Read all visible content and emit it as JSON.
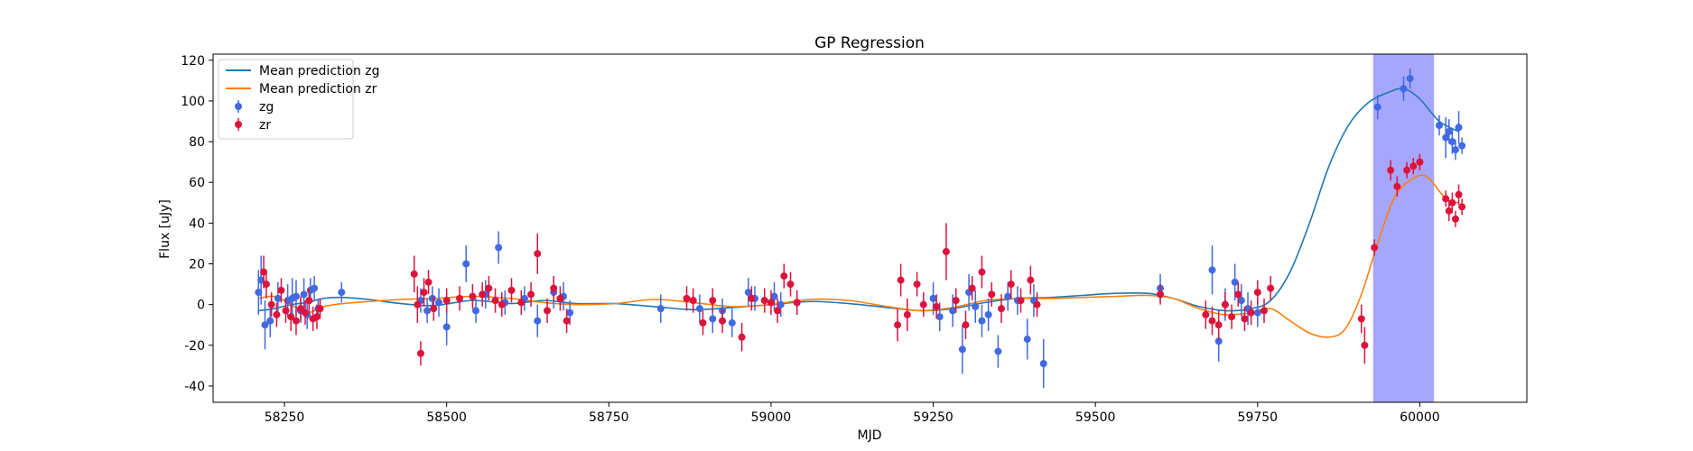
{
  "chart_data": {
    "type": "scatter",
    "title": "GP Regression",
    "xlabel": "MJD",
    "ylabel": "Flux [uJy]",
    "xlim": [
      58140,
      60165
    ],
    "ylim": [
      -48,
      123
    ],
    "xticks": [
      58250,
      58500,
      58750,
      59000,
      59250,
      59500,
      59750,
      60000
    ],
    "yticks": [
      -40,
      -20,
      0,
      20,
      40,
      60,
      80,
      100,
      120
    ],
    "grid": false,
    "legend_position": "upper-left",
    "highlight_band": {
      "x0": 59928,
      "x1": 60022,
      "color": "#a6a6ff"
    },
    "legend": [
      {
        "label": "Mean prediction zg",
        "kind": "line",
        "color": "#1f77b4"
      },
      {
        "label": "Mean prediction zr",
        "kind": "line",
        "color": "#ff7f0e"
      },
      {
        "label": "zg",
        "kind": "marker",
        "color": "#4169e1"
      },
      {
        "label": "zr",
        "kind": "marker",
        "color": "#dc143c"
      }
    ],
    "lines": [
      {
        "name": "Mean prediction zg",
        "color": "#1f77b4",
        "x": [
          58210,
          58235,
          58260,
          58285,
          58310,
          58340,
          58380,
          58430,
          58480,
          58540,
          58600,
          58650,
          58700,
          58760,
          58820,
          58880,
          58940,
          59000,
          59060,
          59120,
          59180,
          59230,
          59280,
          59330,
          59380,
          59430,
          59480,
          59530,
          59580,
          59620,
          59660,
          59700,
          59740,
          59770,
          59800,
          59830,
          59860,
          59890,
          59920,
          59950,
          59975,
          60000,
          60030,
          60060
        ],
        "y": [
          -3,
          -2,
          0,
          1,
          3,
          3.5,
          2.5,
          0.5,
          -0.5,
          2,
          0.5,
          2,
          0.5,
          0.5,
          -1,
          -2.5,
          -1.5,
          0,
          1.5,
          0.5,
          -1.5,
          -3,
          -2,
          1,
          3,
          3.5,
          4.5,
          5.5,
          5.5,
          3,
          -1,
          -3,
          -2,
          2,
          16,
          40,
          68,
          88,
          99,
          104,
          106,
          101,
          90,
          85
        ]
      },
      {
        "name": "Mean prediction zr",
        "color": "#ff7f0e",
        "x": [
          58210,
          58235,
          58260,
          58285,
          58310,
          58340,
          58380,
          58430,
          58480,
          58540,
          58600,
          58650,
          58700,
          58760,
          58820,
          58880,
          58940,
          59000,
          59060,
          59120,
          59180,
          59230,
          59280,
          59330,
          59380,
          59430,
          59480,
          59530,
          59580,
          59620,
          59660,
          59700,
          59740,
          59770,
          59800,
          59830,
          59860,
          59885,
          59910,
          59935,
          59960,
          59985,
          60010,
          60040,
          60060
        ],
        "y": [
          3,
          4,
          0,
          -4,
          -1,
          0.5,
          1.5,
          2.5,
          3,
          4,
          3,
          1,
          0,
          0.5,
          2.5,
          1,
          -1,
          0,
          2.5,
          2,
          -1,
          -3,
          -1.5,
          2,
          3,
          3,
          3.5,
          4,
          4.5,
          3,
          -2,
          -5,
          -4,
          -2,
          -8,
          -14,
          -16,
          -12,
          5,
          30,
          52,
          61,
          63,
          52,
          50
        ]
      }
    ],
    "series": [
      {
        "name": "zg",
        "color": "#4169e1",
        "x": [
          58210,
          58214,
          58220,
          58228,
          58240,
          58255,
          58262,
          58268,
          58275,
          58280,
          58285,
          58290,
          58296,
          58302,
          58338,
          58460,
          58470,
          58478,
          58488,
          58500,
          58530,
          58545,
          58560,
          58580,
          58590,
          58620,
          58640,
          58665,
          58680,
          58690,
          58830,
          58890,
          58910,
          58925,
          58940,
          58965,
          58975,
          59005,
          59015,
          59040,
          59250,
          59260,
          59280,
          59295,
          59305,
          59315,
          59325,
          59335,
          59350,
          59365,
          59380,
          59395,
          59405,
          59420,
          59600,
          59680,
          59690,
          59700,
          59715,
          59725,
          59735,
          59750,
          59935,
          59975,
          59985,
          60030,
          60040,
          60045,
          60050,
          60055,
          60060,
          60065
        ],
        "y": [
          6,
          12,
          -10,
          -8,
          3,
          2,
          3,
          4,
          -3,
          5,
          -5,
          7,
          8,
          -2,
          6,
          2,
          -3,
          3,
          1,
          -11,
          20,
          -3,
          5,
          28,
          1,
          3,
          -8,
          6,
          4,
          -4,
          -2,
          -2,
          -7,
          -3,
          -9,
          6,
          3,
          4,
          0,
          1,
          3,
          -6,
          -3,
          -22,
          6,
          -1,
          -8,
          -5,
          -23,
          4,
          2,
          -17,
          2,
          -29,
          8,
          17,
          -18,
          0,
          11,
          2,
          -2,
          -4,
          97,
          106,
          111,
          88,
          82,
          85,
          80,
          76,
          87,
          78
        ],
        "yerr": [
          11,
          12,
          12,
          8,
          8,
          8,
          10,
          8,
          6,
          8,
          7,
          6,
          6,
          5,
          5,
          6,
          6,
          6,
          7,
          9,
          9,
          6,
          7,
          8,
          6,
          6,
          8,
          8,
          7,
          6,
          7,
          7,
          7,
          6,
          7,
          7,
          6,
          7,
          6,
          6,
          8,
          7,
          8,
          12,
          9,
          8,
          8,
          8,
          8,
          7,
          7,
          10,
          8,
          12,
          7,
          12,
          10,
          8,
          9,
          8,
          8,
          7,
          6,
          6,
          5,
          5,
          10,
          6,
          6,
          5,
          8,
          4
        ]
      },
      {
        "name": "zr",
        "color": "#dc143c",
        "x": [
          58218,
          58222,
          58230,
          58238,
          58245,
          58252,
          58260,
          58268,
          58275,
          58282,
          58288,
          58294,
          58300,
          58305,
          58450,
          58455,
          58460,
          58465,
          58472,
          58480,
          58500,
          58520,
          58540,
          58555,
          58565,
          58575,
          58585,
          58600,
          58615,
          58630,
          58640,
          58655,
          58665,
          58675,
          58685,
          58870,
          58880,
          58895,
          58910,
          58925,
          58955,
          58970,
          58990,
          59000,
          59010,
          59020,
          59030,
          59040,
          59195,
          59200,
          59210,
          59225,
          59235,
          59255,
          59270,
          59285,
          59300,
          59310,
          59325,
          59340,
          59355,
          59370,
          59385,
          59400,
          59410,
          59600,
          59670,
          59680,
          59690,
          59700,
          59710,
          59720,
          59730,
          59740,
          59750,
          59760,
          59770,
          59910,
          59915,
          59930,
          59955,
          59965,
          59980,
          59990,
          60000,
          60040,
          60045,
          60050,
          60055,
          60060,
          60065
        ],
        "y": [
          16,
          10,
          0,
          -5,
          7,
          -3,
          -6,
          -8,
          -2,
          -4,
          2,
          -7,
          -6,
          -2,
          15,
          0,
          -24,
          6,
          11,
          -2,
          2,
          3,
          4,
          5,
          8,
          2,
          0,
          7,
          1,
          5,
          25,
          -3,
          8,
          3,
          -8,
          3,
          2,
          -9,
          2,
          -8,
          -16,
          3,
          2,
          1,
          -3,
          14,
          10,
          1,
          -10,
          12,
          -5,
          10,
          0,
          -1,
          26,
          2,
          -10,
          8,
          16,
          5,
          -2,
          10,
          2,
          12,
          0,
          5,
          -5,
          -8,
          -10,
          0,
          -6,
          5,
          -7,
          -4,
          6,
          -3,
          8,
          -7,
          -20,
          28,
          66,
          58,
          66,
          68,
          70,
          52,
          46,
          50,
          42,
          54,
          48
        ],
        "yerr": [
          8,
          7,
          6,
          6,
          6,
          6,
          7,
          7,
          6,
          6,
          6,
          6,
          6,
          5,
          9,
          9,
          6,
          7,
          6,
          6,
          6,
          6,
          6,
          6,
          6,
          6,
          6,
          6,
          6,
          6,
          10,
          6,
          6,
          6,
          6,
          6,
          6,
          6,
          6,
          6,
          7,
          6,
          6,
          6,
          6,
          6,
          6,
          6,
          8,
          8,
          8,
          6,
          6,
          6,
          14,
          6,
          7,
          6,
          8,
          6,
          7,
          7,
          6,
          7,
          6,
          5,
          7,
          7,
          7,
          6,
          6,
          6,
          6,
          6,
          6,
          6,
          6,
          7,
          9,
          4,
          5,
          5,
          4,
          4,
          4,
          4,
          5,
          5,
          4,
          5,
          4
        ]
      }
    ]
  }
}
